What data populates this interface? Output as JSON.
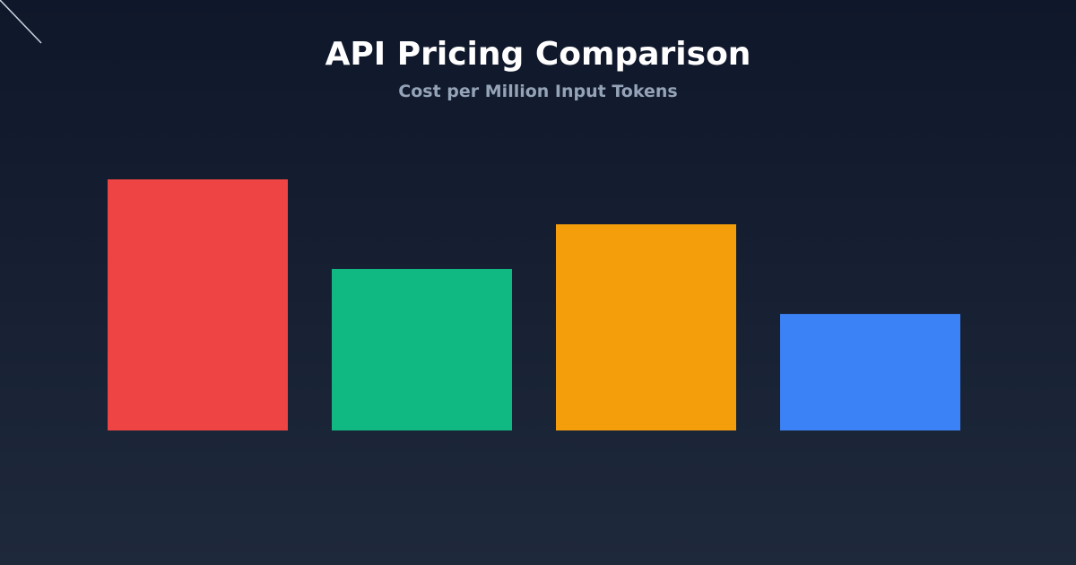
{
  "chart_data": {
    "type": "bar",
    "title": "API Pricing Comparison",
    "subtitle": "Cost per Million Input Tokens",
    "categories": [
      "",
      "",
      "",
      ""
    ],
    "values": [
      1.0,
      0.643,
      0.821,
      0.464
    ],
    "value_note": "relative bar heights; no axis or value labels shown",
    "colors": [
      "#ef4444",
      "#10b981",
      "#f59e0b",
      "#3b82f6"
    ],
    "xlabel": "",
    "ylabel": "",
    "ylim": [
      0,
      1
    ],
    "grid": false,
    "legend": "none"
  },
  "colors": {
    "background_top": "#0f172a",
    "background_bottom": "#1e293b",
    "title": "#ffffff",
    "subtitle": "#94a3b8"
  }
}
